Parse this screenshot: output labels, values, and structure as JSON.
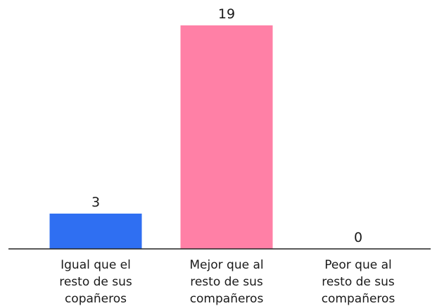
{
  "chart_data": {
    "type": "bar",
    "categories": [
      "Igual que el resto de sus copañeros",
      "Mejor que al resto de sus compañeros",
      "Peor que al resto de sus compañeros"
    ],
    "category_lines": [
      [
        "Igual que el",
        "resto de sus",
        "copañeros"
      ],
      [
        "Mejor que al",
        "resto de sus",
        "compañeros"
      ],
      [
        "Peor que al",
        "resto de sus",
        "compañeros"
      ]
    ],
    "values": [
      3,
      19,
      0
    ],
    "bar_colors": [
      "#2f6ff2",
      "#ff80a6",
      "#2f6ff2"
    ],
    "axis_color": "#222222",
    "ylim": [
      0,
      19
    ],
    "grid": false,
    "legend": "none",
    "title": "",
    "xlabel": "",
    "ylabel": ""
  }
}
